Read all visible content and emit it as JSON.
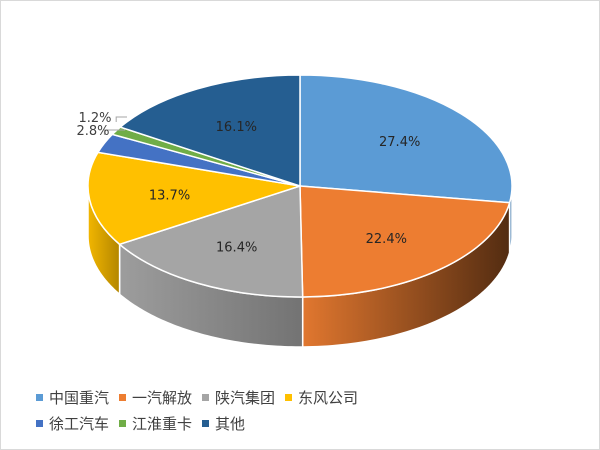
{
  "chart_data": {
    "type": "pie",
    "style": "3d",
    "start": "12 o'clock, clockwise",
    "categories": [
      "中国重汽",
      "一汽解放",
      "陕汽集团",
      "东风公司",
      "徐工汽车",
      "江淮重卡",
      "其他"
    ],
    "values": [
      27.4,
      22.4,
      16.4,
      13.7,
      2.8,
      1.2,
      16.1
    ],
    "labels": [
      "27.4%",
      "22.4%",
      "16.4%",
      "13.7%",
      "2.8%",
      "1.2%",
      "16.1%"
    ],
    "colors": [
      "#5B9BD5",
      "#ED7D31",
      "#A5A5A5",
      "#FFC000",
      "#4472C4",
      "#70AD47",
      "#255E91"
    ],
    "legend_position": "bottom-left"
  }
}
